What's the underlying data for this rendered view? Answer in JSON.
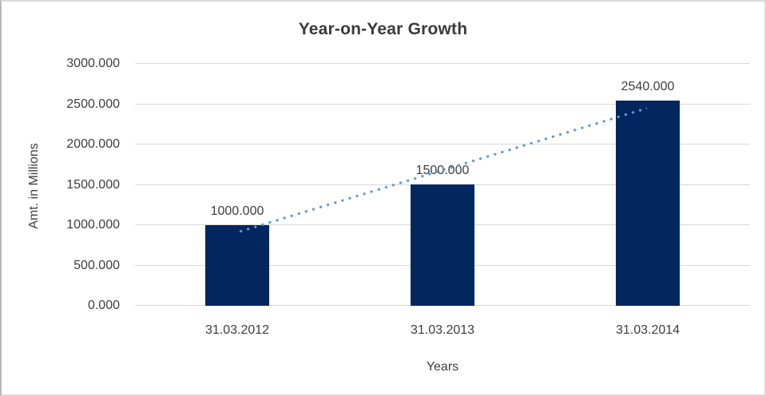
{
  "window": {
    "background": "#ffffff",
    "border_color": "#d9d9d9"
  },
  "chart_data": {
    "type": "bar",
    "title": "Year-on-Year Growth",
    "xlabel": "Years",
    "ylabel": "Amt. in Millions",
    "categories": [
      "31.03.2012",
      "31.03.2013",
      "31.03.2014"
    ],
    "values": [
      1000,
      1500,
      2540
    ],
    "value_labels": [
      "1000.000",
      "1500.000",
      "2540.000"
    ],
    "ylim": [
      0,
      3000
    ],
    "yticks": [
      0,
      500,
      1000,
      1500,
      2000,
      2500,
      3000
    ],
    "ytick_labels": [
      "0.000",
      "500.000",
      "1000.000",
      "1500.000",
      "2000.000",
      "2500.000",
      "3000.000"
    ],
    "grid": "horizontal",
    "gridline_color": "#d9d9d9",
    "legend": "none",
    "bar_color": "#02265e",
    "trendline": {
      "style": "dotted",
      "color": "#5b9bd5",
      "start_value": 910,
      "end_value": 2450
    }
  }
}
